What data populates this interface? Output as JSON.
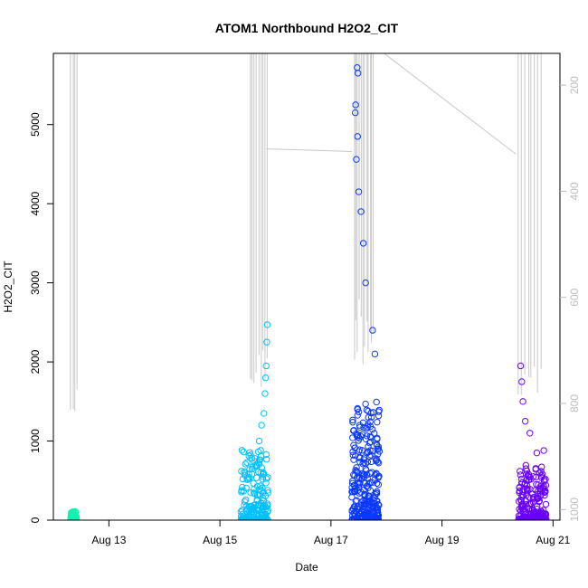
{
  "chart_data": {
    "type": "scatter",
    "title": "ATOM1 Northbound H2O2_CIT",
    "xlabel": "Date",
    "ylabel": "H2O2_CIT",
    "xlim": [
      "2021-08-12T00:00",
      "2021-08-21T03:00"
    ],
    "ylim": [
      0,
      5900
    ],
    "x_ticks": [
      "2021-08-13",
      "2021-08-15",
      "2021-08-17",
      "2021-08-19",
      "2021-08-21"
    ],
    "x_tick_labels": [
      "Aug 13",
      "Aug 15",
      "Aug 17",
      "Aug 19",
      "Aug 21"
    ],
    "y_ticks": [
      0,
      1000,
      2000,
      3000,
      4000,
      5000
    ],
    "y_tick_labels": [
      "0",
      "1000",
      "2000",
      "3000",
      "4000",
      "5000"
    ],
    "secondary_axis": {
      "side": "right",
      "reversed": true,
      "ylim": [
        1020,
        140
      ],
      "ticks": [
        200,
        400,
        600,
        800,
        1000
      ],
      "tick_labels": [
        "200",
        "400",
        "600",
        "800",
        "1000"
      ],
      "color": "#bdbdbd"
    },
    "grid": false,
    "legend": "none",
    "series": [
      {
        "color": "#12f2b0",
        "marker": "open-circle",
        "x_range": [
          "2021-08-12T07:30",
          "2021-08-12T10:00"
        ],
        "points": [
          [
            "2021-08-12T07:40",
            60
          ],
          [
            "2021-08-12T07:55",
            90
          ],
          [
            "2021-08-12T08:10",
            30
          ],
          [
            "2021-08-12T08:25",
            70
          ],
          [
            "2021-08-12T08:40",
            20
          ],
          [
            "2021-08-12T08:55",
            50
          ],
          [
            "2021-08-12T09:10",
            80
          ],
          [
            "2021-08-12T09:25",
            40
          ],
          [
            "2021-08-12T09:40",
            100
          ],
          [
            "2021-08-12T09:55",
            30
          ]
        ]
      },
      {
        "color": "#00c0ff",
        "marker": "open-circle",
        "x_range": [
          "2021-08-15T09:00",
          "2021-08-15T21:00"
        ],
        "points": [
          [
            "2021-08-15T19:00",
            1350
          ],
          [
            "2021-08-15T19:30",
            1600
          ],
          [
            "2021-08-15T20:00",
            1950
          ],
          [
            "2021-08-15T20:15",
            2250
          ],
          [
            "2021-08-15T20:30",
            2470
          ],
          [
            "2021-08-15T17:00",
            1000
          ],
          [
            "2021-08-15T18:00",
            1200
          ],
          [
            "2021-08-15T19:45",
            1800
          ]
        ]
      },
      {
        "color": "#0a38ff",
        "marker": "open-circle",
        "x_range": [
          "2021-08-17T09:00",
          "2021-08-17T21:00"
        ],
        "points": [
          [
            "2021-08-17T11:00",
            4560
          ],
          [
            "2021-08-17T11:30",
            4850
          ],
          [
            "2021-08-17T10:30",
            5150
          ],
          [
            "2021-08-17T10:40",
            5250
          ],
          [
            "2021-08-17T11:40",
            5650
          ],
          [
            "2021-08-17T11:20",
            5720
          ],
          [
            "2021-08-17T12:00",
            4150
          ],
          [
            "2021-08-17T13:00",
            3900
          ],
          [
            "2021-08-17T14:00",
            3500
          ],
          [
            "2021-08-17T15:00",
            3000
          ],
          [
            "2021-08-17T18:00",
            2400
          ],
          [
            "2021-08-17T19:00",
            2100
          ]
        ]
      },
      {
        "color": "#6a00ff",
        "marker": "open-circle",
        "x_range": [
          "2021-08-20T09:00",
          "2021-08-20T21:00"
        ],
        "points": [
          [
            "2021-08-20T10:00",
            1950
          ],
          [
            "2021-08-20T10:30",
            1750
          ],
          [
            "2021-08-20T11:00",
            1500
          ],
          [
            "2021-08-20T12:00",
            1250
          ],
          [
            "2021-08-20T14:00",
            1100
          ],
          [
            "2021-08-20T17:00",
            850
          ],
          [
            "2021-08-20T20:00",
            880
          ]
        ]
      }
    ],
    "depth_trace": {
      "axis": "secondary",
      "color": "#c8c8c8",
      "bridges": [
        [
          "2021-08-15T20:00",
          320,
          "2021-08-17T09:00",
          325
        ],
        [
          "2021-08-17T23:00",
          140,
          "2021-08-20T08:00",
          330
        ]
      ]
    }
  }
}
